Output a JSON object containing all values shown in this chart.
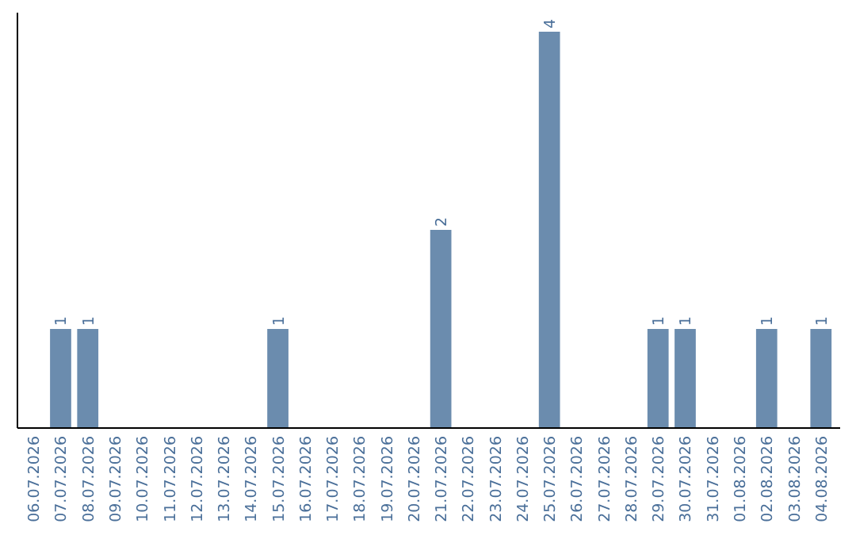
{
  "chart_data": {
    "type": "bar",
    "categories": [
      "06.07.2026",
      "07.07.2026",
      "08.07.2026",
      "09.07.2026",
      "10.07.2026",
      "11.07.2026",
      "12.07.2026",
      "13.07.2026",
      "14.07.2026",
      "15.07.2026",
      "16.07.2026",
      "17.07.2026",
      "18.07.2026",
      "19.07.2026",
      "20.07.2026",
      "21.07.2026",
      "22.07.2026",
      "23.07.2026",
      "24.07.2026",
      "25.07.2026",
      "26.07.2026",
      "27.07.2026",
      "28.07.2026",
      "29.07.2026",
      "30.07.2026",
      "31.07.2026",
      "01.08.2026",
      "02.08.2026",
      "03.08.2026",
      "04.08.2026"
    ],
    "values": [
      0,
      1,
      1,
      0,
      0,
      0,
      0,
      0,
      0,
      1,
      0,
      0,
      0,
      0,
      0,
      2,
      0,
      0,
      0,
      4,
      0,
      0,
      0,
      1,
      1,
      0,
      0,
      1,
      0,
      1
    ],
    "value_labels": [
      null,
      "1",
      "1",
      null,
      null,
      null,
      null,
      null,
      null,
      "1",
      null,
      null,
      null,
      null,
      null,
      "2",
      null,
      null,
      null,
      "4",
      null,
      null,
      null,
      "1",
      "1",
      null,
      null,
      "1",
      null,
      "1"
    ],
    "color": "#6b8cae",
    "tick_labels": "x",
    "grid": false
  }
}
